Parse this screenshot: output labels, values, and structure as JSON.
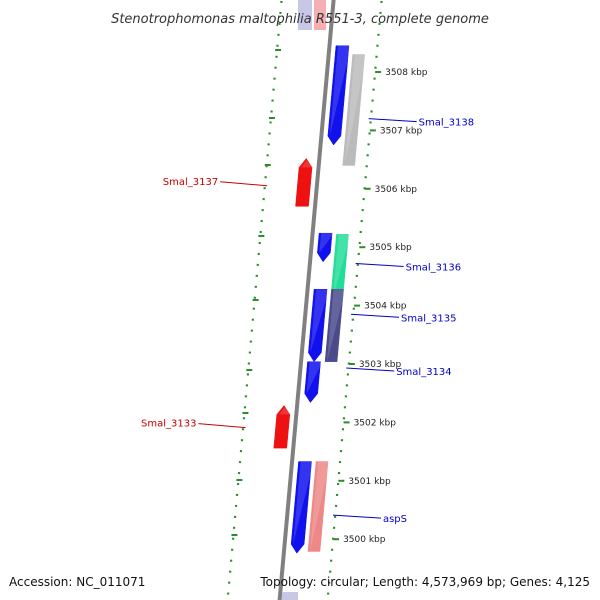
{
  "title": "Stenotrophomonas maltophilia R551-3, complete genome",
  "footer": {
    "accession": "Accession: NC_011071",
    "topology": "Topology: circular; Length: 4,573,969 bp; Genes: 4,125"
  },
  "colors": {
    "backbone": "#808080",
    "dots": "#2e8b2e",
    "forward_gene": "#ee1111",
    "reverse_gene": "#1111ee",
    "gene_label_left": "#cc0000",
    "gene_label_right": "#0000cc",
    "gray_feature": "#bbbbbb",
    "teal_feature": "#22dd99",
    "navy_feature": "#4a4a8c",
    "pink_feature": "#ee8888"
  },
  "scale": {
    "ticks": [
      {
        "label": "3508 kbp",
        "bp": 3508000
      },
      {
        "label": "3507 kbp",
        "bp": 3507000
      },
      {
        "label": "3506 kbp",
        "bp": 3506000
      },
      {
        "label": "3505 kbp",
        "bp": 3505000
      },
      {
        "label": "3504 kbp",
        "bp": 3504000
      },
      {
        "label": "3503 kbp",
        "bp": 3503000
      },
      {
        "label": "3502 kbp",
        "bp": 3502000
      },
      {
        "label": "3501 kbp",
        "bp": 3501000
      },
      {
        "label": "3500 kbp",
        "bp": 3500000
      }
    ]
  },
  "gene_labels": [
    {
      "text": "Smal_3138",
      "side": "right",
      "bp": 3507150
    },
    {
      "text": "Smal_3137",
      "side": "left",
      "bp": 3506120
    },
    {
      "text": "Smal_3136",
      "side": "right",
      "bp": 3504670
    },
    {
      "text": "Smal_3135",
      "side": "right",
      "bp": 3503800
    },
    {
      "text": "Smal_3134",
      "side": "right",
      "bp": 3502880
    },
    {
      "text": "Smal_3133",
      "side": "left",
      "bp": 3501980
    },
    {
      "text": "aspS",
      "side": "right",
      "bp": 3500360
    }
  ],
  "features": [
    {
      "name": "Smal_3138",
      "strand": "reverse",
      "track": "gene",
      "start": 3506750,
      "end": 3508450
    },
    {
      "name": "Smal_3138",
      "strand": "reverse",
      "track": "cds",
      "start": 3506400,
      "end": 3508300
    },
    {
      "name": "Smal_3137",
      "strand": "forward",
      "track": "gene",
      "start": 3505700,
      "end": 3506520
    },
    {
      "name": "Smal_3136",
      "strand": "reverse",
      "track": "gene",
      "start": 3504750,
      "end": 3505240
    },
    {
      "name": "Smal_3136",
      "strand": "reverse",
      "track": "cds",
      "start": 3504100,
      "end": 3505220
    },
    {
      "name": "Smal_3135",
      "strand": "reverse",
      "track": "gene",
      "start": 3503040,
      "end": 3504280
    },
    {
      "name": "Smal_3135",
      "strand": "reverse",
      "track": "cds",
      "start": 3503040,
      "end": 3504280
    },
    {
      "name": "Smal_3134",
      "strand": "reverse",
      "track": "gene",
      "start": 3502340,
      "end": 3503040
    },
    {
      "name": "Smal_3133",
      "strand": "forward",
      "track": "gene",
      "start": 3501560,
      "end": 3502290
    },
    {
      "name": "aspS",
      "strand": "reverse",
      "track": "gene",
      "start": 3499760,
      "end": 3501330
    },
    {
      "name": "aspS",
      "strand": "reverse",
      "track": "cds",
      "start": 3499790,
      "end": 3501330
    }
  ]
}
